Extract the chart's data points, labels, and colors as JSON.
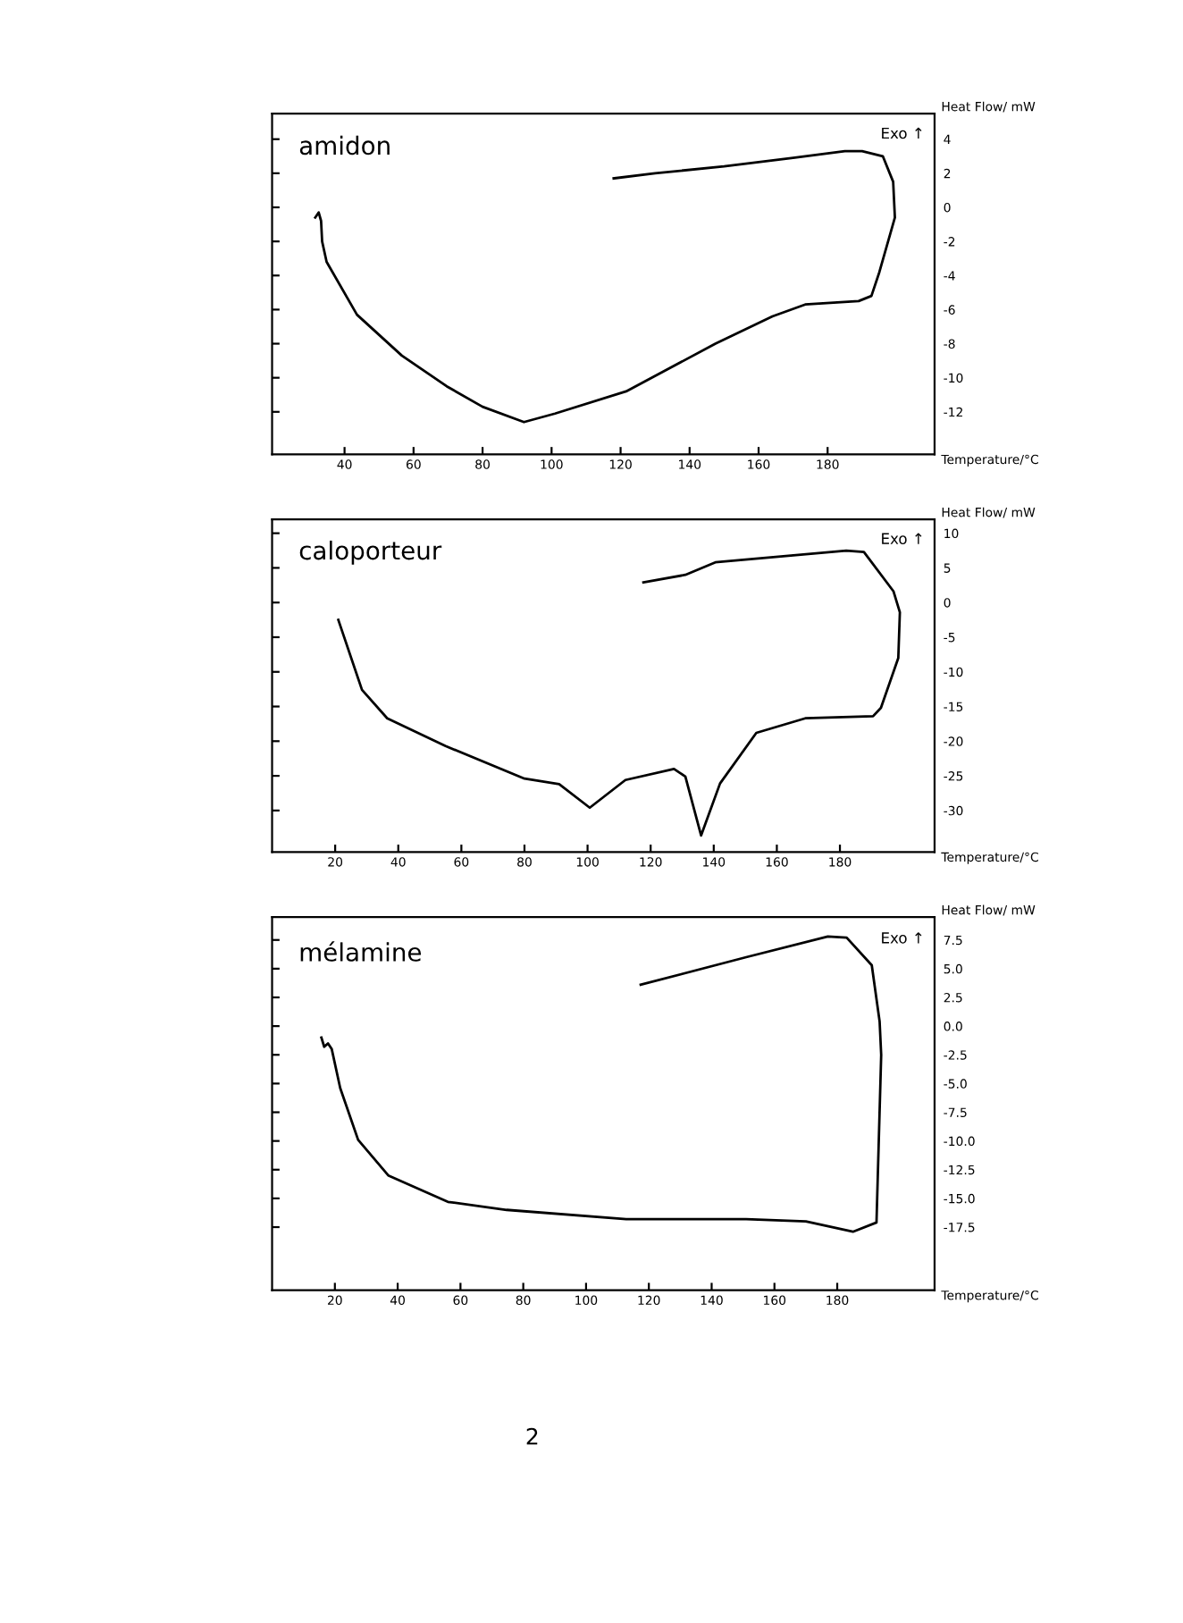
{
  "chart_data": [
    {
      "type": "line",
      "title": "amidon",
      "xlabel": "Temperature/°C",
      "ylabel": "Heat Flow/ mW",
      "annotations": [
        "Exo ↑"
      ],
      "color": "#000000",
      "marker": "none",
      "line_style": "solid",
      "grid": false,
      "xlim": [
        19,
        211
      ],
      "ylim": [
        -14.5,
        5.5
      ],
      "xticks": [
        40,
        60,
        80,
        100,
        120,
        140,
        160,
        180
      ],
      "yticks": [
        4,
        2,
        0,
        -2,
        -4,
        -6,
        -8,
        -10,
        -12
      ],
      "x": [
        31.5,
        32.5,
        33.2,
        33.5,
        34.8,
        43.6,
        56.6,
        69.6,
        80,
        92,
        101,
        121.6,
        147.5,
        164,
        173.5,
        189,
        192.7,
        195,
        199.5,
        199,
        196,
        190,
        185,
        170,
        150,
        130,
        118
      ],
      "values": [
        -0.6,
        -0.3,
        -0.8,
        -2.0,
        -3.2,
        -6.3,
        -8.7,
        -10.5,
        -11.7,
        -12.6,
        -12.1,
        -10.8,
        -8.0,
        -6.4,
        -5.7,
        -5.5,
        -5.2,
        -3.8,
        -0.6,
        1.5,
        3.0,
        3.3,
        3.3,
        2.9,
        2.4,
        2.0,
        1.7
      ]
    },
    {
      "type": "line",
      "title": "caloporteur",
      "xlabel": "Temperature/°C",
      "ylabel": "Heat Flow/ mW",
      "annotations": [
        "Exo ↑"
      ],
      "color": "#000000",
      "marker": "none",
      "line_style": "solid",
      "grid": false,
      "xlim": [
        0,
        210
      ],
      "ylim": [
        -36,
        12
      ],
      "xticks": [
        20,
        40,
        60,
        80,
        100,
        120,
        140,
        160,
        180
      ],
      "yticks": [
        10,
        5,
        0,
        -5,
        -10,
        -15,
        -20,
        -25,
        -30
      ],
      "x": [
        21,
        28.5,
        36.5,
        55,
        80,
        91,
        100.7,
        112,
        127.4,
        131,
        136,
        142,
        153.5,
        169,
        190.5,
        193,
        198.5,
        199,
        197,
        187.6,
        182,
        140.5,
        131,
        117.7
      ],
      "values": [
        -2.5,
        -12.6,
        -16.7,
        -20.7,
        -25.4,
        -26.2,
        -29.6,
        -25.6,
        -24.0,
        -25.1,
        -33.6,
        -26.1,
        -18.8,
        -16.7,
        -16.4,
        -15.2,
        -8.0,
        -1.4,
        1.6,
        7.3,
        7.5,
        5.8,
        4.0,
        2.9
      ]
    },
    {
      "type": "line",
      "title": "mélamine",
      "xlabel": "Temperature/°C",
      "ylabel": "Heat Flow/ mW",
      "annotations": [
        "Exo ↑",
        "2"
      ],
      "color": "#000000",
      "marker": "none",
      "line_style": "solid",
      "grid": false,
      "xlim": [
        0,
        211
      ],
      "ylim": [
        -23,
        9.5
      ],
      "xticks": [
        20,
        40,
        60,
        80,
        100,
        120,
        140,
        160,
        180
      ],
      "yticks": [
        7.5,
        {
          "value": 5,
          "label": "5.0"
        },
        2.5,
        {
          "value": 0,
          "label": "0.0"
        },
        -2.5,
        {
          "value": -5,
          "label": "-5.0"
        },
        -7.5,
        {
          "value": -10,
          "label": "-10.0"
        },
        -12.5,
        {
          "value": -15,
          "label": "-15.0"
        },
        -17.5
      ],
      "x": [
        15.7,
        16.6,
        17.8,
        19,
        21.7,
        27.4,
        37,
        56,
        74.7,
        112.8,
        151,
        170,
        185,
        192.5,
        194,
        193.5,
        191,
        183,
        177,
        151,
        117.4
      ],
      "values": [
        -1.0,
        -1.8,
        -1.5,
        -2.0,
        -5.4,
        -9.9,
        -13.0,
        -15.3,
        -16.0,
        -16.8,
        -16.8,
        -17.0,
        -17.9,
        -17.1,
        -2.5,
        0.4,
        5.3,
        7.7,
        7.8,
        6.0,
        3.6
      ]
    }
  ]
}
